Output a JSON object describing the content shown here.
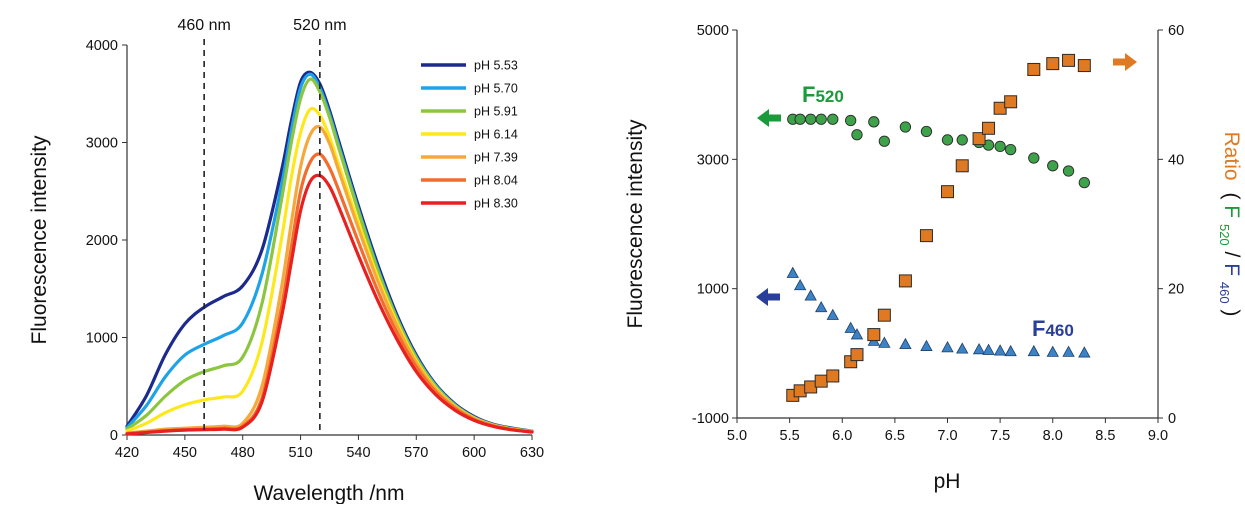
{
  "chart_data": [
    {
      "type": "line",
      "xlabel": "Wavelength /nm",
      "ylabel": "Fluorescence intensity",
      "xlim": [
        420,
        630
      ],
      "ylim": [
        0,
        4000
      ],
      "xticks": [
        "420",
        "450",
        "480",
        "510",
        "540",
        "570",
        "600",
        "630"
      ],
      "yticks": [
        "0",
        "1000",
        "2000",
        "3000",
        "4000"
      ],
      "annotations": [
        {
          "label": "460 nm",
          "x": 460,
          "style": "dashed vertical line"
        },
        {
          "label": "520 nm",
          "x": 520,
          "style": "dashed vertical line"
        }
      ],
      "legend_position": "top-right",
      "x": [
        420,
        430,
        440,
        450,
        460,
        470,
        480,
        490,
        500,
        505,
        510,
        515,
        520,
        525,
        530,
        540,
        550,
        560,
        570,
        580,
        590,
        600,
        610,
        620,
        630
      ],
      "series": [
        {
          "name": "pH 5.53",
          "color": "#1b2a8c",
          "values": [
            90,
            400,
            830,
            1140,
            1310,
            1420,
            1530,
            1900,
            2700,
            3200,
            3620,
            3720,
            3600,
            3330,
            3000,
            2350,
            1750,
            1230,
            820,
            520,
            320,
            190,
            110,
            70,
            40
          ]
        },
        {
          "name": "pH 5.70",
          "color": "#1ea3e8",
          "values": [
            75,
            300,
            600,
            820,
            930,
            1020,
            1150,
            1650,
            2550,
            3100,
            3560,
            3700,
            3560,
            3290,
            2960,
            2310,
            1710,
            1200,
            800,
            510,
            310,
            180,
            105,
            65,
            38
          ]
        },
        {
          "name": "pH 5.91",
          "color": "#8cc63e",
          "values": [
            60,
            200,
            400,
            560,
            650,
            710,
            800,
            1350,
            2400,
            2980,
            3450,
            3650,
            3520,
            3260,
            2930,
            2290,
            1690,
            1190,
            790,
            500,
            305,
            178,
            103,
            63,
            37
          ]
        },
        {
          "name": "pH 6.14",
          "color": "#ffe81a",
          "values": [
            40,
            120,
            230,
            310,
            360,
            390,
            450,
            950,
            2000,
            2620,
            3100,
            3340,
            3280,
            3060,
            2760,
            2180,
            1620,
            1150,
            760,
            480,
            295,
            172,
            100,
            60,
            35
          ]
        },
        {
          "name": "pH 7.39",
          "color": "#f6a93b",
          "values": [
            20,
            40,
            60,
            70,
            80,
            90,
            120,
            500,
            1500,
            2150,
            2750,
            3080,
            3160,
            2990,
            2700,
            2120,
            1580,
            1120,
            740,
            470,
            290,
            168,
            98,
            58,
            34
          ]
        },
        {
          "name": "pH 8.04",
          "color": "#f26c2e",
          "values": [
            15,
            30,
            45,
            55,
            60,
            70,
            90,
            380,
            1300,
            1900,
            2500,
            2800,
            2880,
            2740,
            2500,
            1980,
            1480,
            1050,
            700,
            445,
            275,
            160,
            93,
            55,
            32
          ]
        },
        {
          "name": "pH 8.30",
          "color": "#e8201f",
          "values": [
            10,
            25,
            40,
            50,
            55,
            60,
            80,
            340,
            1200,
            1750,
            2300,
            2600,
            2660,
            2550,
            2330,
            1840,
            1380,
            980,
            650,
            415,
            255,
            150,
            88,
            52,
            30
          ]
        }
      ]
    },
    {
      "type": "scatter",
      "xlabel": "pH",
      "ylabel": "Fluorescence intensity",
      "y2label_parts": [
        "Ratio",
        "(",
        "F",
        "520",
        "/",
        "F",
        "460",
        ")"
      ],
      "xlim": [
        5.0,
        9.0
      ],
      "ylim": [
        -1000,
        5000
      ],
      "y2lim": [
        0,
        60
      ],
      "xticks": [
        "5.0",
        "5.5",
        "6.0",
        "6.5",
        "7.0",
        "7.5",
        "8.0",
        "8.5",
        "9.0"
      ],
      "yticks": [
        "-1000",
        "1000",
        "3000",
        "5000"
      ],
      "y2ticks": [
        "0",
        "20",
        "40",
        "60"
      ],
      "annotations": [
        {
          "label": "F",
          "sub": "520",
          "color": "#1a9a3a",
          "arrow": "left",
          "series": "F520"
        },
        {
          "label": "F",
          "sub": "460",
          "color": "#2a3f9a",
          "arrow": "left",
          "series": "F460"
        },
        {
          "arrow": "right",
          "color": "#e07a22",
          "series": "Ratio"
        }
      ],
      "x": [
        5.53,
        5.6,
        5.7,
        5.8,
        5.91,
        6.08,
        6.14,
        6.3,
        6.4,
        6.6,
        6.8,
        7.0,
        7.14,
        7.3,
        7.39,
        7.5,
        7.6,
        7.82,
        8.0,
        8.15,
        8.3
      ],
      "series": [
        {
          "name": "F520",
          "axis": "left",
          "color": "#3ea24a",
          "marker": "circle",
          "values": [
            3620,
            3620,
            3620,
            3620,
            3620,
            3600,
            3380,
            3580,
            3280,
            3500,
            3430,
            3300,
            3300,
            3260,
            3220,
            3200,
            3150,
            3020,
            2900,
            2820,
            2640
          ]
        },
        {
          "name": "F460",
          "axis": "left",
          "color": "#3b83c6",
          "marker": "triangle",
          "values": [
            1250,
            1060,
            900,
            720,
            600,
            400,
            300,
            200,
            170,
            150,
            120,
            100,
            80,
            70,
            60,
            50,
            40,
            40,
            30,
            30,
            20
          ]
        },
        {
          "name": "Ratio",
          "axis": "right",
          "color": "#e07a22",
          "marker": "square",
          "values": [
            3.5,
            4.2,
            4.8,
            5.7,
            6.5,
            8.7,
            9.8,
            12.9,
            15.9,
            21.2,
            28.2,
            35.0,
            39.0,
            43.2,
            44.8,
            47.9,
            48.9,
            53.9,
            54.8,
            55.3,
            54.5
          ]
        }
      ]
    }
  ]
}
